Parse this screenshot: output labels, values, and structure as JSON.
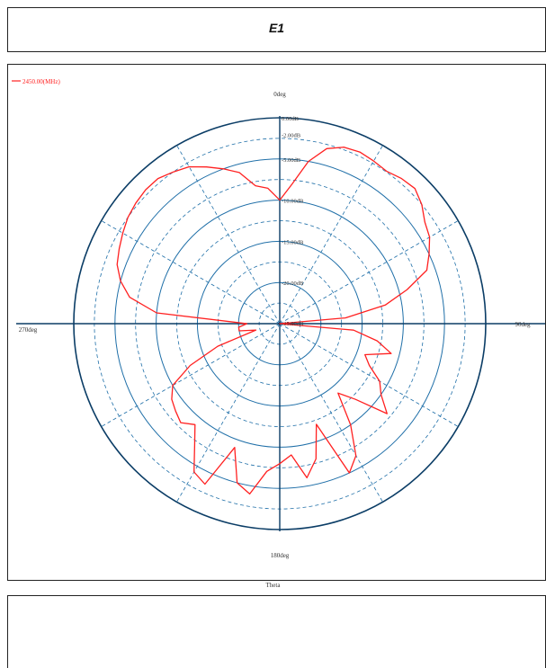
{
  "figure": {
    "title": "E1"
  },
  "chart_data": {
    "type": "line",
    "polar": true,
    "xlabel": "Theta",
    "angle_unit": "deg",
    "angle_tick_labels": [
      {
        "deg": 0,
        "label": "0deg"
      },
      {
        "deg": 90,
        "label": "90deg"
      },
      {
        "deg": 180,
        "label": "180deg"
      },
      {
        "deg": 270,
        "label": "270deg"
      }
    ],
    "radial_axis": {
      "inner_db": -25,
      "outer_db": 0,
      "rings_db": [
        -5,
        -10,
        -15,
        -20
      ],
      "tick_labels": [
        "0.00dB",
        "-2.00dB",
        "-5.00dB",
        "-10.00dB",
        "-15.00dB",
        "-20.00dB",
        "-25.00dB"
      ],
      "tick_values": [
        0,
        -2,
        -5,
        -10,
        -15,
        -20,
        -25
      ]
    },
    "legend": {
      "position": "top-left",
      "entries": [
        "2450.00(MHz)"
      ]
    },
    "colors": {
      "series": "#ff2020",
      "axis": "#0b3d66",
      "grid": "#1f6fa8"
    },
    "series": [
      {
        "name": "2450.00(MHz)",
        "theta_deg": [
          0,
          5,
          10,
          15,
          20,
          25,
          30,
          35,
          40,
          45,
          50,
          55,
          60,
          65,
          70,
          75,
          80,
          85,
          90,
          95,
          100,
          105,
          110,
          115,
          120,
          125,
          130,
          135,
          140,
          145,
          150,
          155,
          160,
          165,
          170,
          175,
          180,
          185,
          190,
          195,
          200,
          205,
          210,
          215,
          220,
          225,
          230,
          235,
          240,
          245,
          250,
          255,
          260,
          265,
          270,
          275,
          280,
          285,
          290,
          295,
          300,
          305,
          310,
          315,
          320,
          325,
          330,
          335,
          340,
          345,
          350,
          355
        ],
        "gain_db": [
          -10,
          -8,
          -5,
          -3,
          -2.2,
          -2,
          -2.2,
          -2.4,
          -2,
          -1.8,
          -2.5,
          -3.5,
          -4,
          -5,
          -6,
          -9,
          -12,
          -17,
          -25,
          -16,
          -13,
          -11,
          -14,
          -13,
          -11,
          -10,
          -8,
          -12,
          -14,
          -10,
          -6.5,
          -5,
          -12,
          -8,
          -6,
          -9,
          -8,
          -7,
          -4,
          -5,
          -9,
          -3.5,
          -4.2,
          -7,
          -9,
          -8,
          -8.5,
          -9,
          -10,
          -13,
          -17,
          -22,
          -20,
          -20,
          -21,
          -10,
          -6.5,
          -5,
          -4,
          -3.5,
          -3,
          -2.5,
          -2.2,
          -2,
          -2,
          -2.5,
          -3,
          -4,
          -5,
          -6,
          -8,
          -8.5
        ]
      }
    ]
  }
}
